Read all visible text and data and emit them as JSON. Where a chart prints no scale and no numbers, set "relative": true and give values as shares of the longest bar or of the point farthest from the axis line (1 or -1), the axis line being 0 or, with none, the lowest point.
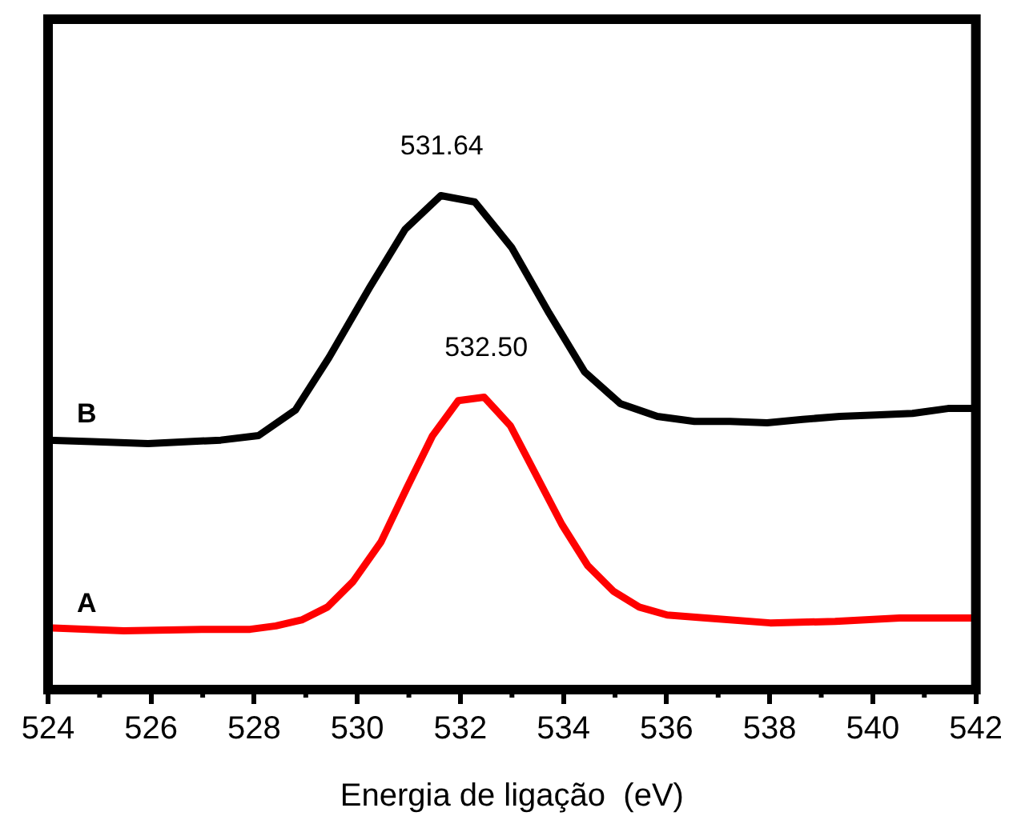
{
  "chart_data": {
    "type": "line",
    "relative": true,
    "xlabel": "Energia de ligação  (eV)",
    "xlim": [
      524,
      542
    ],
    "xticks": [
      524,
      526,
      528,
      530,
      532,
      534,
      536,
      538,
      540,
      542
    ],
    "legend": false,
    "grid": false,
    "tick_labels": "x",
    "marker": "none",
    "line_style": "solid",
    "series": [
      {
        "name": "B",
        "color": "#000000",
        "x": [
          524.0,
          524.85,
          525.94,
          527.35,
          528.08,
          528.8,
          529.45,
          530.24,
          530.93,
          531.62,
          532.28,
          533.0,
          533.72,
          534.41,
          535.1,
          535.82,
          536.54,
          537.23,
          537.95,
          538.64,
          539.36,
          540.05,
          540.77,
          541.46,
          542.0
        ],
        "values": [
          0.505,
          0.502,
          0.498,
          0.505,
          0.514,
          0.566,
          0.672,
          0.814,
          0.932,
          1.0,
          0.987,
          0.894,
          0.762,
          0.643,
          0.579,
          0.553,
          0.543,
          0.543,
          0.54,
          0.547,
          0.553,
          0.556,
          0.559,
          0.569,
          0.569
        ]
      },
      {
        "name": "A",
        "color": "#ff0000",
        "x": [
          524.0,
          525.47,
          526.98,
          527.92,
          528.42,
          528.92,
          529.42,
          529.92,
          530.46,
          530.96,
          531.46,
          531.96,
          532.46,
          532.97,
          533.47,
          533.97,
          534.47,
          534.97,
          535.47,
          536.01,
          536.76,
          538.01,
          539.27,
          540.52,
          541.02,
          542.0
        ],
        "values": [
          0.125,
          0.119,
          0.122,
          0.122,
          0.129,
          0.141,
          0.167,
          0.219,
          0.299,
          0.408,
          0.514,
          0.585,
          0.592,
          0.534,
          0.434,
          0.334,
          0.251,
          0.199,
          0.167,
          0.151,
          0.145,
          0.135,
          0.138,
          0.145,
          0.145,
          0.145
        ]
      }
    ],
    "annotations": [
      {
        "text": "531.64",
        "x": 531.64,
        "y": 1.0
      },
      {
        "text": "532.50",
        "x": 532.5,
        "y": 0.592
      }
    ]
  }
}
